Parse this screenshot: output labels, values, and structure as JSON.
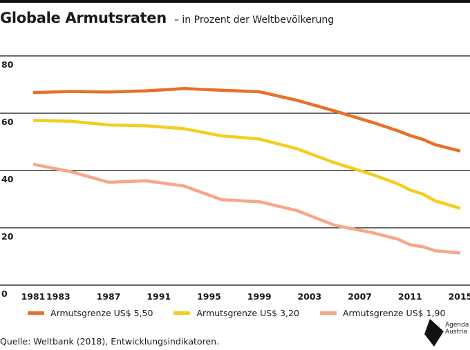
{
  "title": "Globale Armutsraten",
  "subtitle": "– in Prozent der Weltbevölkerung",
  "source": "Quelle: Weltbank (2018), Entwicklungsindikatoren.",
  "brand": {
    "line1": "Agenda",
    "line2": "Austria"
  },
  "colors": {
    "s550": "#E8702A",
    "s320": "#F5CD1E",
    "s190": "#F8A68A",
    "grid": "#111111"
  },
  "chart_data": {
    "type": "line",
    "title": "Globale Armutsraten",
    "subtitle": "– in Prozent der Weltbevölkerung",
    "xlabel": "",
    "ylabel": "",
    "x": [
      1981,
      1984,
      1987,
      1990,
      1993,
      1996,
      1999,
      2002,
      2005,
      2008,
      2010,
      2011,
      2012,
      2013,
      2015
    ],
    "x_ticks": [
      1981,
      1983,
      1987,
      1991,
      1995,
      1999,
      2003,
      2007,
      2011,
      2015
    ],
    "y_ticks": [
      0,
      20,
      40,
      60,
      80
    ],
    "xlim": [
      1981,
      2015
    ],
    "ylim": [
      0,
      80
    ],
    "grid": "horizontal",
    "legend_position": "bottom",
    "series": [
      {
        "name": "Armutsgrenze US$ 5,50",
        "color": "#E8702A",
        "values": [
          67.2,
          67.6,
          67.4,
          67.8,
          68.6,
          68.0,
          67.5,
          64.5,
          60.8,
          56.8,
          53.9,
          52.2,
          50.9,
          49.0,
          46.8
        ]
      },
      {
        "name": "Armutsgrenze US$ 3,20",
        "color": "#F5CD1E",
        "values": [
          57.5,
          57.2,
          55.9,
          55.6,
          54.6,
          52.1,
          51.0,
          47.6,
          42.7,
          38.6,
          35.4,
          33.2,
          31.8,
          29.4,
          26.8
        ]
      },
      {
        "name": "Armutsgrenze US$ 1,90",
        "color": "#F8A68A",
        "values": [
          42.2,
          39.6,
          35.9,
          36.4,
          34.6,
          29.8,
          29.1,
          26.0,
          20.9,
          18.3,
          16.1,
          14.1,
          13.4,
          12.0,
          11.2
        ]
      }
    ]
  }
}
